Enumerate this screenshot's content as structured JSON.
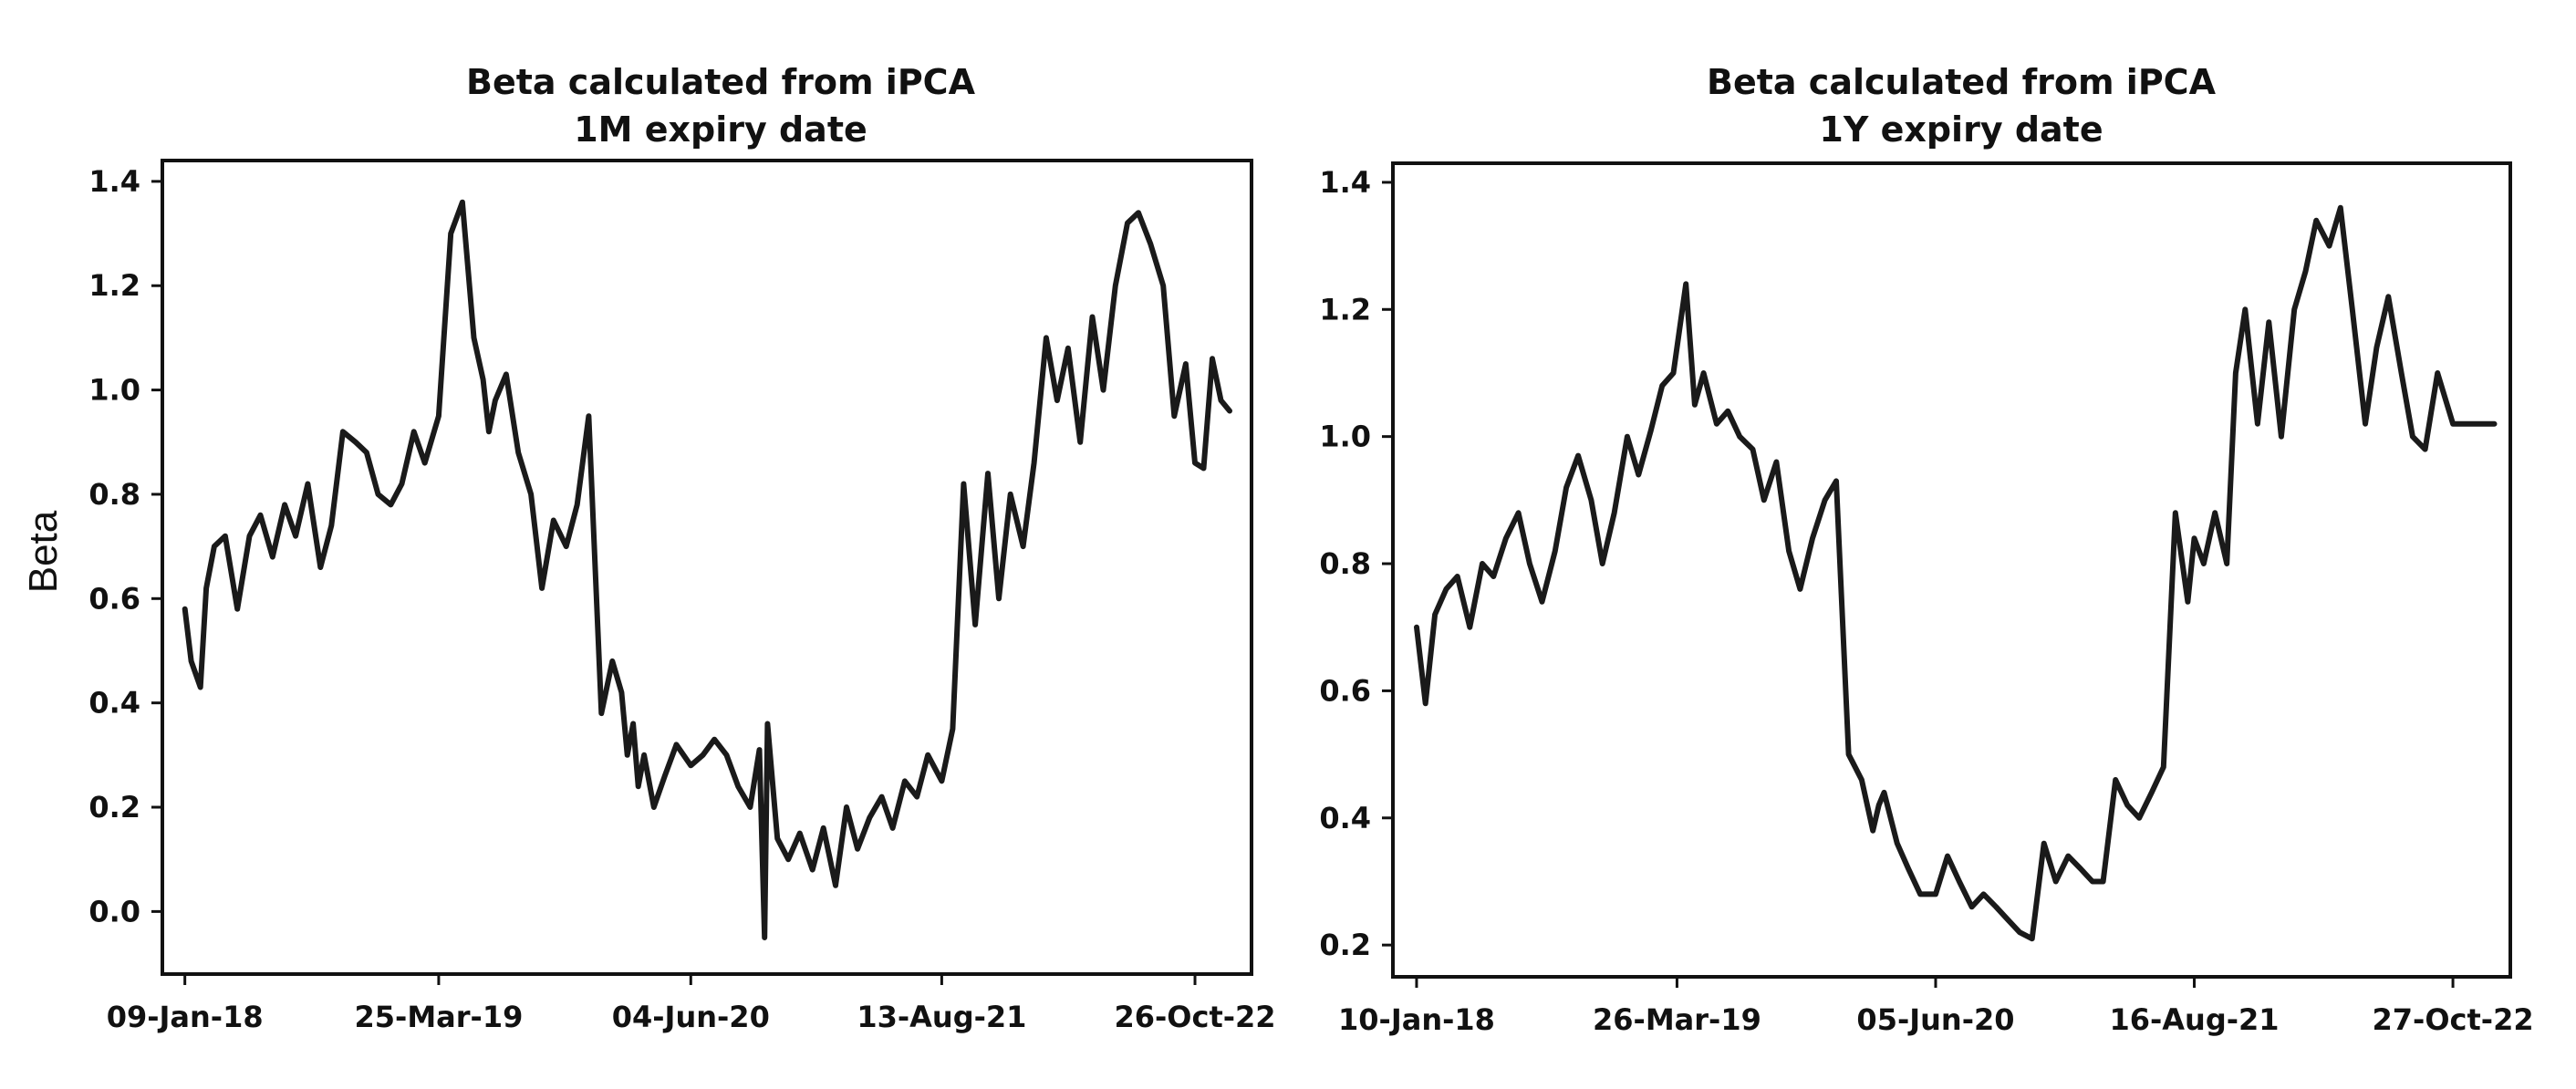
{
  "shared_ylabel": "Beta",
  "line_color": "#1a1a1a",
  "chart_data": [
    {
      "type": "line",
      "title": "Beta calculated from iPCA",
      "subtitle": "1M expiry date",
      "ylabel": "Beta",
      "xlim": [
        "2017-12-01",
        "2023-02-01"
      ],
      "ylim": [
        -0.12,
        1.44
      ],
      "yticks": [
        0.0,
        0.2,
        0.4,
        0.6,
        0.8,
        1.0,
        1.2,
        1.4
      ],
      "ytick_labels": [
        "0.0",
        "0.2",
        "0.4",
        "0.6",
        "0.8",
        "1.0",
        "1.2",
        "1.4"
      ],
      "xticks": [
        "2018-01-09",
        "2019-03-25",
        "2020-06-04",
        "2021-08-13",
        "2022-10-26"
      ],
      "xtick_labels": [
        "09-Jan-18",
        "25-Mar-19",
        "04-Jun-20",
        "13-Aug-21",
        "26-Oct-22"
      ],
      "grid": false,
      "x": [
        "2018-01-09",
        "2018-01-20",
        "2018-02-05",
        "2018-02-15",
        "2018-03-01",
        "2018-03-20",
        "2018-04-10",
        "2018-05-01",
        "2018-05-20",
        "2018-06-10",
        "2018-07-01",
        "2018-07-20",
        "2018-08-10",
        "2018-09-01",
        "2018-09-20",
        "2018-10-10",
        "2018-11-01",
        "2018-11-20",
        "2018-12-10",
        "2019-01-01",
        "2019-01-20",
        "2019-02-10",
        "2019-03-01",
        "2019-03-25",
        "2019-04-15",
        "2019-05-05",
        "2019-05-25",
        "2019-06-10",
        "2019-06-20",
        "2019-07-01",
        "2019-07-20",
        "2019-08-10",
        "2019-09-01",
        "2019-09-20",
        "2019-10-10",
        "2019-11-01",
        "2019-11-20",
        "2019-12-10",
        "2020-01-01",
        "2020-01-20",
        "2020-02-05",
        "2020-02-15",
        "2020-02-25",
        "2020-03-05",
        "2020-03-15",
        "2020-04-01",
        "2020-04-20",
        "2020-05-10",
        "2020-06-04",
        "2020-06-25",
        "2020-07-15",
        "2020-08-05",
        "2020-08-25",
        "2020-09-15",
        "2020-10-01",
        "2020-10-10",
        "2020-10-15",
        "2020-11-01",
        "2020-11-20",
        "2020-12-10",
        "2021-01-01",
        "2021-01-20",
        "2021-02-10",
        "2021-03-01",
        "2021-03-20",
        "2021-04-10",
        "2021-05-01",
        "2021-05-20",
        "2021-06-10",
        "2021-07-01",
        "2021-07-20",
        "2021-08-13",
        "2021-09-01",
        "2021-09-20",
        "2021-10-10",
        "2021-11-01",
        "2021-11-20",
        "2021-12-10",
        "2022-01-01",
        "2022-01-20",
        "2022-02-10",
        "2022-03-01",
        "2022-03-20",
        "2022-04-10",
        "2022-05-01",
        "2022-05-20",
        "2022-06-10",
        "2022-07-01",
        "2022-07-20",
        "2022-08-10",
        "2022-09-01",
        "2022-09-20",
        "2022-10-10",
        "2022-10-26",
        "2022-11-10",
        "2022-11-25",
        "2022-12-10",
        "2022-12-25"
      ],
      "series": [
        {
          "values": [
            0.58,
            0.48,
            0.43,
            0.62,
            0.7,
            0.72,
            0.58,
            0.72,
            0.76,
            0.68,
            0.78,
            0.72,
            0.82,
            0.66,
            0.74,
            0.92,
            0.9,
            0.88,
            0.8,
            0.78,
            0.82,
            0.92,
            0.86,
            0.95,
            1.3,
            1.36,
            1.1,
            1.02,
            0.92,
            0.98,
            1.03,
            0.88,
            0.8,
            0.62,
            0.75,
            0.7,
            0.78,
            0.95,
            0.38,
            0.48,
            0.42,
            0.3,
            0.36,
            0.24,
            0.3,
            0.2,
            0.26,
            0.32,
            0.28,
            0.3,
            0.33,
            0.3,
            0.24,
            0.2,
            0.31,
            -0.05,
            0.36,
            0.14,
            0.1,
            0.15,
            0.08,
            0.16,
            0.05,
            0.2,
            0.12,
            0.18,
            0.22,
            0.16,
            0.25,
            0.22,
            0.3,
            0.25,
            0.35,
            0.82,
            0.55,
            0.84,
            0.6,
            0.8,
            0.7,
            0.86,
            1.1,
            0.98,
            1.08,
            0.9,
            1.14,
            1.0,
            1.2,
            1.32,
            1.34,
            1.28,
            1.2,
            0.95,
            1.05,
            0.86,
            0.85,
            1.06,
            0.98,
            0.96
          ]
        }
      ]
    },
    {
      "type": "line",
      "title": "Beta calculated from iPCA",
      "subtitle": "1Y expiry date",
      "ylabel": "",
      "xlim": [
        "2017-12-01",
        "2023-02-01"
      ],
      "ylim": [
        0.15,
        1.43
      ],
      "yticks": [
        0.2,
        0.4,
        0.6,
        0.8,
        1.0,
        1.2,
        1.4
      ],
      "ytick_labels": [
        "0.2",
        "0.4",
        "0.6",
        "0.8",
        "1.0",
        "1.2",
        "1.4"
      ],
      "xticks": [
        "2018-01-10",
        "2019-03-26",
        "2020-06-05",
        "2021-08-16",
        "2022-10-27"
      ],
      "xtick_labels": [
        "10-Jan-18",
        "26-Mar-19",
        "05-Jun-20",
        "16-Aug-21",
        "27-Oct-22"
      ],
      "grid": false,
      "x": [
        "2018-01-10",
        "2018-01-25",
        "2018-02-10",
        "2018-03-01",
        "2018-03-20",
        "2018-04-10",
        "2018-05-01",
        "2018-05-20",
        "2018-06-10",
        "2018-07-01",
        "2018-07-20",
        "2018-08-10",
        "2018-09-01",
        "2018-09-20",
        "2018-10-10",
        "2018-11-01",
        "2018-11-20",
        "2018-12-10",
        "2019-01-01",
        "2019-01-20",
        "2019-02-10",
        "2019-03-01",
        "2019-03-20",
        "2019-04-10",
        "2019-04-25",
        "2019-05-10",
        "2019-06-01",
        "2019-06-20",
        "2019-07-10",
        "2019-08-01",
        "2019-08-20",
        "2019-09-10",
        "2019-10-01",
        "2019-10-20",
        "2019-11-10",
        "2019-12-01",
        "2019-12-20",
        "2020-01-10",
        "2020-02-01",
        "2020-02-20",
        "2020-03-01",
        "2020-03-10",
        "2020-04-01",
        "2020-04-20",
        "2020-05-10",
        "2020-06-05",
        "2020-06-25",
        "2020-07-15",
        "2020-08-05",
        "2020-08-25",
        "2020-09-15",
        "2020-10-05",
        "2020-10-25",
        "2020-11-15",
        "2020-12-05",
        "2020-12-25",
        "2021-01-15",
        "2021-02-05",
        "2021-02-25",
        "2021-03-15",
        "2021-04-05",
        "2021-04-25",
        "2021-05-15",
        "2021-06-05",
        "2021-06-25",
        "2021-07-15",
        "2021-08-05",
        "2021-08-16",
        "2021-09-01",
        "2021-09-20",
        "2021-10-10",
        "2021-10-25",
        "2021-11-10",
        "2021-12-01",
        "2021-12-20",
        "2022-01-10",
        "2022-02-01",
        "2022-02-20",
        "2022-03-10",
        "2022-04-01",
        "2022-04-20",
        "2022-05-10",
        "2022-06-01",
        "2022-06-20",
        "2022-07-10",
        "2022-08-01",
        "2022-08-20",
        "2022-09-10",
        "2022-10-01",
        "2022-10-27",
        "2022-11-15",
        "2022-12-01",
        "2022-12-20",
        "2023-01-05"
      ],
      "series": [
        {
          "values": [
            0.7,
            0.58,
            0.72,
            0.76,
            0.78,
            0.7,
            0.8,
            0.78,
            0.84,
            0.88,
            0.8,
            0.74,
            0.82,
            0.92,
            0.97,
            0.9,
            0.8,
            0.88,
            1.0,
            0.94,
            1.01,
            1.08,
            1.1,
            1.24,
            1.05,
            1.1,
            1.02,
            1.04,
            1.0,
            0.98,
            0.9,
            0.96,
            0.82,
            0.76,
            0.84,
            0.9,
            0.93,
            0.5,
            0.46,
            0.38,
            0.42,
            0.44,
            0.36,
            0.32,
            0.28,
            0.28,
            0.34,
            0.3,
            0.26,
            0.28,
            0.26,
            0.24,
            0.22,
            0.21,
            0.36,
            0.3,
            0.34,
            0.32,
            0.3,
            0.3,
            0.46,
            0.42,
            0.4,
            0.44,
            0.48,
            0.88,
            0.74,
            0.84,
            0.8,
            0.88,
            0.8,
            1.1,
            1.2,
            1.02,
            1.18,
            1.0,
            1.2,
            1.26,
            1.34,
            1.3,
            1.36,
            1.2,
            1.02,
            1.14,
            1.22,
            1.1,
            1.0,
            0.98,
            1.1,
            1.02,
            1.02,
            1.02,
            1.02,
            1.02
          ]
        }
      ]
    }
  ]
}
